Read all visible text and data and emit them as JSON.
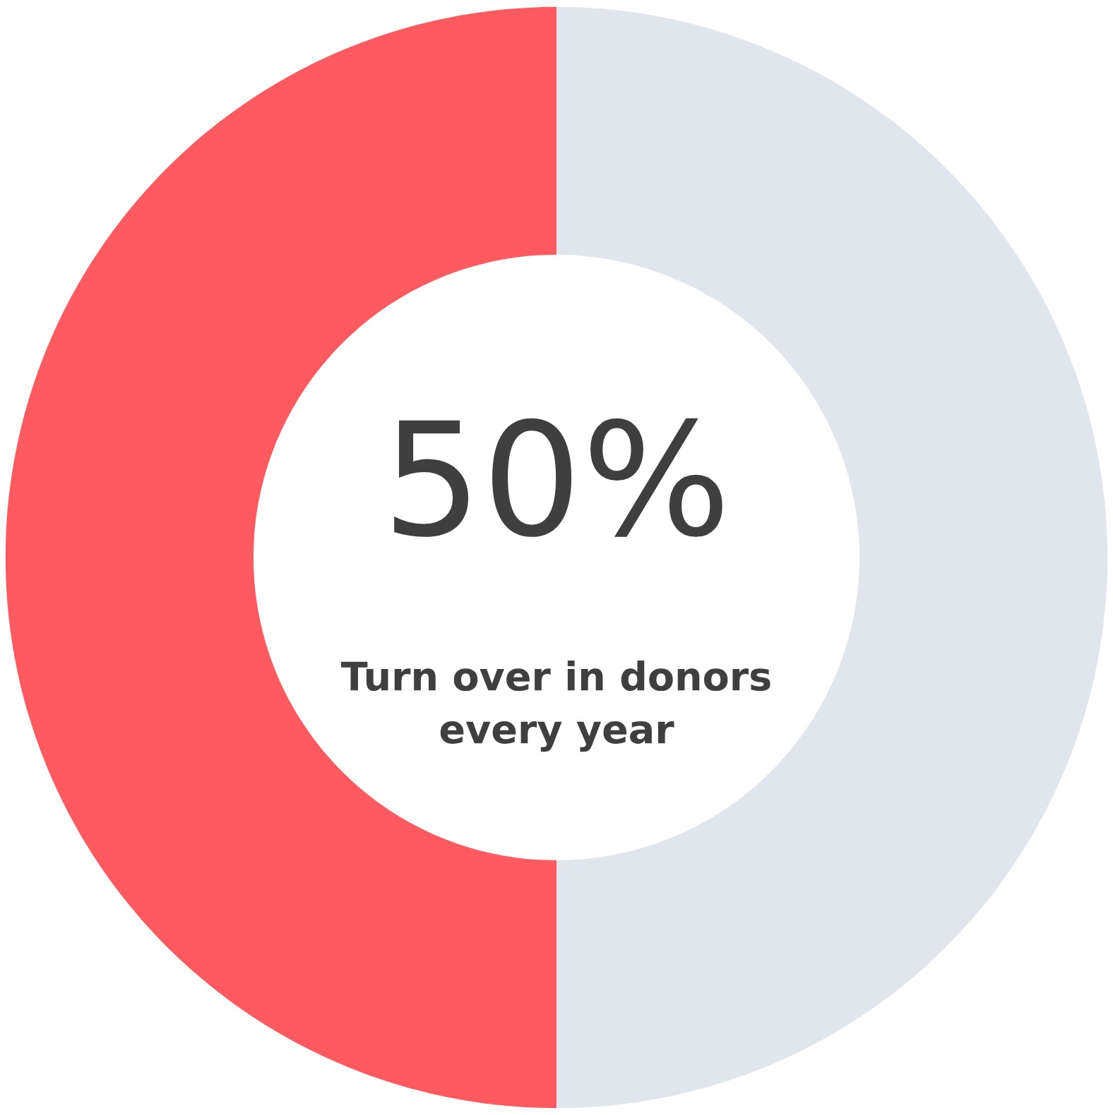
{
  "chart_data": {
    "type": "donut",
    "categories": [
      null,
      null
    ],
    "values": [
      50,
      50
    ],
    "colors": [
      "#fe5a5f",
      "#e0e6eb"
    ],
    "value_labels": [
      "50%",
      null
    ],
    "annotations": [
      "Turn over in donors\nevery year"
    ]
  }
}
